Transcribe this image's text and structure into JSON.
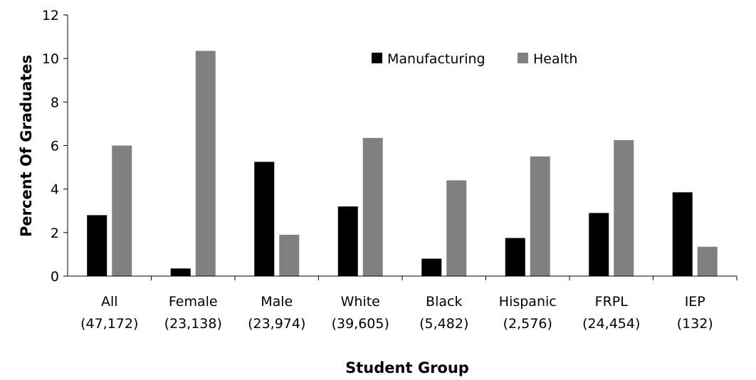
{
  "chart_data": {
    "type": "bar",
    "xlabel": "Student Group",
    "ylabel": "Percent Of  Graduates",
    "ylim": [
      0,
      12
    ],
    "yticks": [
      "0",
      "2",
      "4",
      "6",
      "8",
      "10",
      "12"
    ],
    "categories": [
      {
        "name": "All",
        "n": "(47,172)"
      },
      {
        "name": "Female",
        "n": "(23,138)"
      },
      {
        "name": "Male",
        "n": "(23,974)"
      },
      {
        "name": "White",
        "n": "(39,605)"
      },
      {
        "name": "Black",
        "n": "(5,482)"
      },
      {
        "name": "Hispanic",
        "n": "(2,576)"
      },
      {
        "name": "FRPL",
        "n": "(24,454)"
      },
      {
        "name": "IEP",
        "n": "(132)"
      }
    ],
    "series": [
      {
        "name": "Manufacturing",
        "color": "#000000",
        "values": [
          2.8,
          0.35,
          5.25,
          3.2,
          0.8,
          1.75,
          2.9,
          3.85
        ]
      },
      {
        "name": "Health",
        "color": "#808080",
        "values": [
          6.0,
          10.35,
          1.9,
          6.35,
          4.4,
          5.5,
          6.25,
          1.35
        ]
      }
    ],
    "legend_position": "top-right",
    "grid": false
  }
}
